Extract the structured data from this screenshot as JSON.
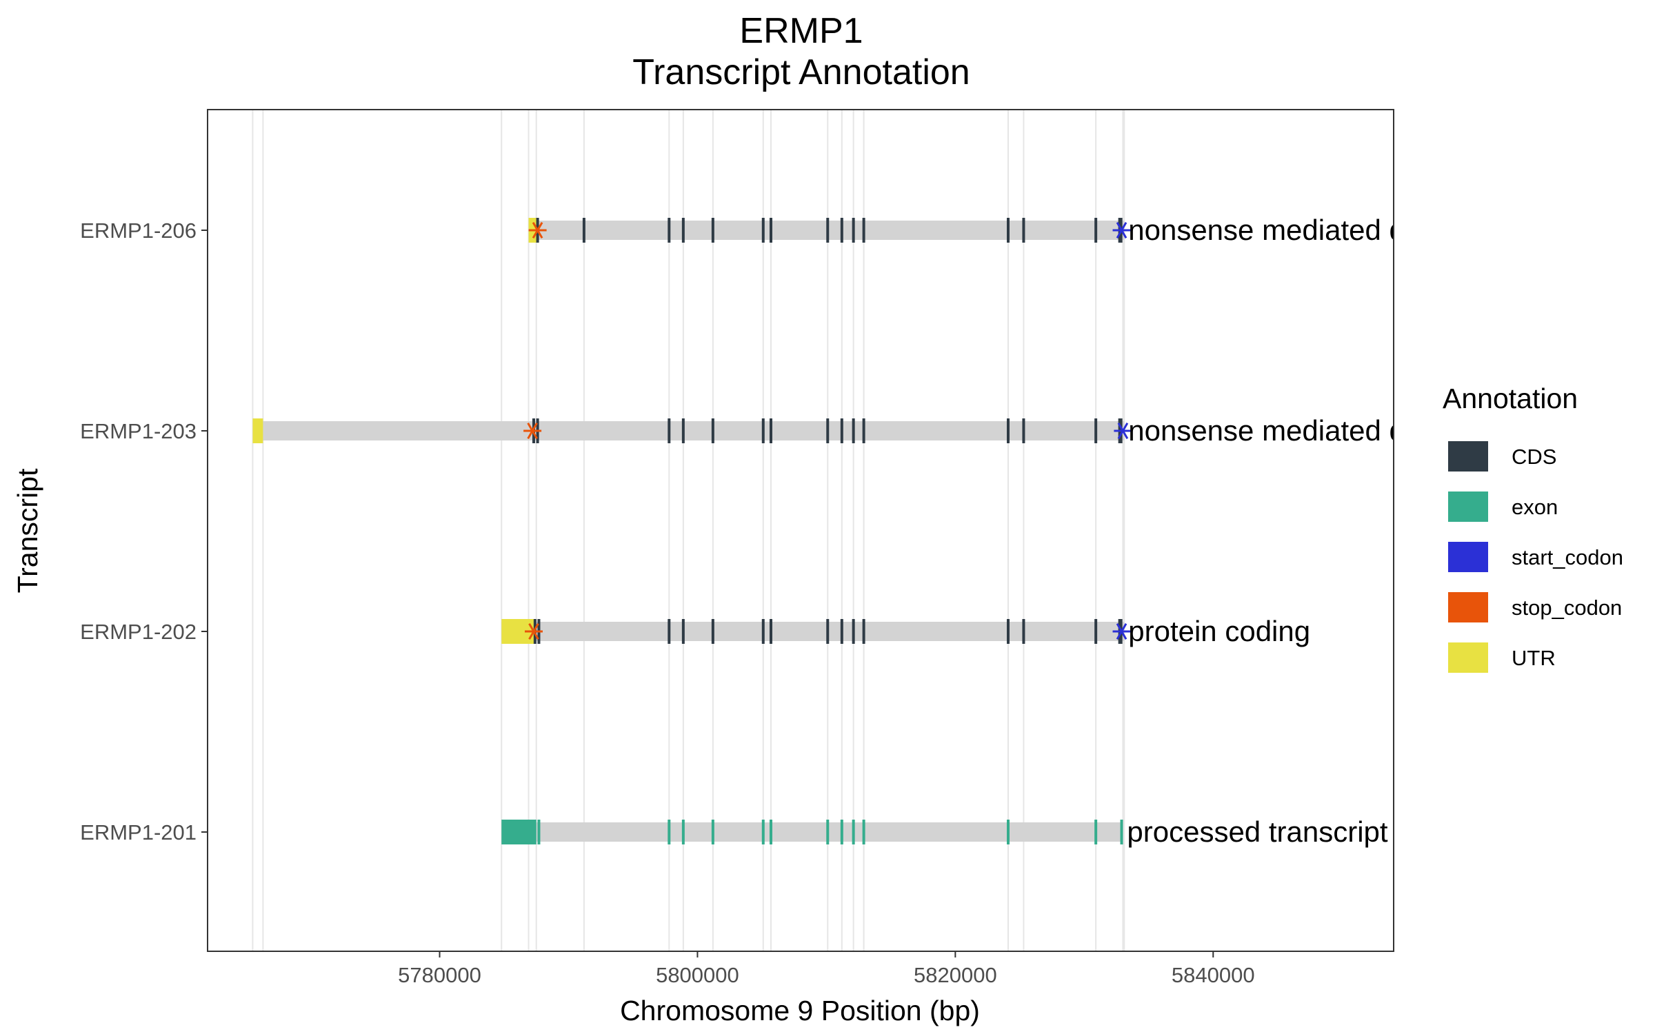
{
  "chart_data": {
    "type": "gene-model",
    "title": "ERMP1",
    "subtitle": "Transcript Annotation",
    "xlabel": "Chromosome 9 Position (bp)",
    "ylabel": "Transcript",
    "xlim": [
      5762000,
      5854000
    ],
    "xticks": [
      5780000,
      5800000,
      5820000,
      5840000
    ],
    "xtick_labels": [
      "5780000",
      "5800000",
      "5820000",
      "5840000"
    ],
    "grid": "vertical lines at exon boundaries",
    "legend": {
      "title": "Annotation",
      "position": "right",
      "items": [
        {
          "label": "CDS",
          "color": "#2f3b45"
        },
        {
          "label": "exon",
          "color": "#35ad8d"
        },
        {
          "label": "start_codon",
          "color": "#2b30d6"
        },
        {
          "label": "stop_codon",
          "color": "#e8540a"
        },
        {
          "label": "UTR",
          "color": "#e8e142"
        }
      ]
    },
    "intron_color": "#d3d3d3",
    "exon_positions": [
      5787500,
      5791200,
      5797800,
      5798900,
      5801200,
      5805100,
      5805700,
      5810100,
      5811200,
      5812100,
      5812900,
      5824100,
      5825300,
      5830900
    ],
    "transcripts": [
      {
        "name": "ERMP1-206",
        "biotype": "nonsense mediated decay",
        "start": 5786900,
        "end": 5833100,
        "utr": [
          [
            5786900,
            5787700
          ]
        ],
        "exon_type": "CDS",
        "exons": [
          5787600,
          5791200,
          5797800,
          5798900,
          5801200,
          5805100,
          5805700,
          5810100,
          5811200,
          5812100,
          5812900,
          5824100,
          5825300,
          5830900,
          5832800
        ],
        "stop_codon": 5787600,
        "start_codon": 5832900
      },
      {
        "name": "ERMP1-203",
        "biotype": "nonsense mediated decay",
        "start": 5765500,
        "end": 5833100,
        "utr": [
          [
            5765500,
            5766300
          ]
        ],
        "exon_type": "CDS",
        "exons": [
          5787300,
          5787600,
          5797800,
          5798900,
          5801200,
          5805100,
          5805700,
          5810100,
          5811200,
          5812100,
          5812900,
          5824100,
          5825300,
          5830900,
          5832800
        ],
        "stop_codon": 5787200,
        "start_codon": 5833000
      },
      {
        "name": "ERMP1-202",
        "biotype": "protein coding",
        "start": 5784800,
        "end": 5833100,
        "utr": [
          [
            5784800,
            5787400
          ]
        ],
        "exon_type": "CDS",
        "exons": [
          5787400,
          5787700,
          5797800,
          5798900,
          5801200,
          5805100,
          5805700,
          5810100,
          5811200,
          5812100,
          5812900,
          5824100,
          5825300,
          5830900,
          5832800
        ],
        "stop_codon": 5787300,
        "start_codon": 5832900
      },
      {
        "name": "ERMP1-201",
        "biotype": "processed transcript",
        "start": 5784800,
        "end": 5833000,
        "utr": [],
        "exon_type": "exon",
        "exon_blocks": [
          [
            5784800,
            5787500
          ]
        ],
        "exons": [
          5787700,
          5797800,
          5798900,
          5801200,
          5805100,
          5805700,
          5810100,
          5811200,
          5812100,
          5812900,
          5824100,
          5830900,
          5832900
        ],
        "stop_codon": null,
        "start_codon": null
      }
    ]
  }
}
